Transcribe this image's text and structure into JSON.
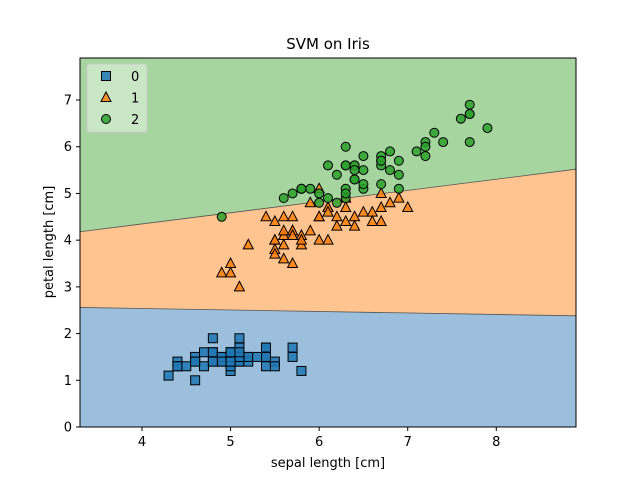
{
  "chart_data": {
    "type": "scatter",
    "title": "SVM on Iris",
    "xlabel": "sepal length [cm]",
    "ylabel": "petal length [cm]",
    "xlim": [
      3.3,
      8.9
    ],
    "ylim": [
      0,
      7.9
    ],
    "xticks": [
      4,
      5,
      6,
      7,
      8
    ],
    "yticks": [
      0,
      1,
      2,
      3,
      4,
      5,
      6,
      7
    ],
    "grid": false,
    "legend_position": "top-left",
    "regions": [
      {
        "class": "0",
        "color": "#9bbfdc",
        "edge": "#555555"
      },
      {
        "class": "1",
        "color": "#ffc48f",
        "edge": "#555555"
      },
      {
        "class": "2",
        "color": "#a6d59f",
        "edge": "#555555"
      }
    ],
    "boundaries": [
      {
        "between": [
          "0",
          "1"
        ],
        "points": [
          [
            3.3,
            2.56
          ],
          [
            8.9,
            2.38
          ]
        ]
      },
      {
        "between": [
          "1",
          "2"
        ],
        "points": [
          [
            3.3,
            4.18
          ],
          [
            8.9,
            5.52
          ]
        ]
      }
    ],
    "series": [
      {
        "name": "0",
        "marker": "square",
        "color": "#1f77b4",
        "points": [
          [
            5.1,
            1.4
          ],
          [
            4.9,
            1.4
          ],
          [
            4.7,
            1.3
          ],
          [
            4.6,
            1.5
          ],
          [
            5.0,
            1.4
          ],
          [
            5.4,
            1.7
          ],
          [
            4.6,
            1.4
          ],
          [
            5.0,
            1.5
          ],
          [
            4.4,
            1.4
          ],
          [
            4.9,
            1.5
          ],
          [
            5.4,
            1.5
          ],
          [
            4.8,
            1.6
          ],
          [
            4.8,
            1.4
          ],
          [
            4.3,
            1.1
          ],
          [
            5.8,
            1.2
          ],
          [
            5.7,
            1.5
          ],
          [
            5.4,
            1.3
          ],
          [
            5.1,
            1.4
          ],
          [
            5.7,
            1.7
          ],
          [
            5.1,
            1.5
          ],
          [
            5.4,
            1.7
          ],
          [
            5.1,
            1.5
          ],
          [
            4.6,
            1.0
          ],
          [
            5.1,
            1.7
          ],
          [
            4.8,
            1.9
          ],
          [
            5.0,
            1.6
          ],
          [
            5.0,
            1.6
          ],
          [
            5.2,
            1.5
          ],
          [
            5.2,
            1.4
          ],
          [
            4.7,
            1.6
          ],
          [
            4.8,
            1.6
          ],
          [
            5.4,
            1.5
          ],
          [
            5.2,
            1.5
          ],
          [
            5.5,
            1.4
          ],
          [
            4.9,
            1.5
          ],
          [
            5.0,
            1.2
          ],
          [
            5.5,
            1.3
          ],
          [
            4.9,
            1.4
          ],
          [
            4.4,
            1.3
          ],
          [
            5.1,
            1.5
          ],
          [
            5.0,
            1.3
          ],
          [
            4.5,
            1.3
          ],
          [
            4.4,
            1.3
          ],
          [
            5.0,
            1.6
          ],
          [
            5.1,
            1.9
          ],
          [
            4.8,
            1.4
          ],
          [
            5.1,
            1.6
          ],
          [
            4.6,
            1.4
          ],
          [
            5.3,
            1.5
          ],
          [
            5.0,
            1.4
          ]
        ]
      },
      {
        "name": "1",
        "marker": "triangle",
        "color": "#ff7f0e",
        "points": [
          [
            7.0,
            4.7
          ],
          [
            6.4,
            4.5
          ],
          [
            6.9,
            4.9
          ],
          [
            5.5,
            4.0
          ],
          [
            6.5,
            4.6
          ],
          [
            5.7,
            4.5
          ],
          [
            6.3,
            4.7
          ],
          [
            4.9,
            3.3
          ],
          [
            6.6,
            4.6
          ],
          [
            5.2,
            3.9
          ],
          [
            5.0,
            3.5
          ],
          [
            5.9,
            4.2
          ],
          [
            6.0,
            4.0
          ],
          [
            6.1,
            4.7
          ],
          [
            5.6,
            3.6
          ],
          [
            6.7,
            4.4
          ],
          [
            5.6,
            4.5
          ],
          [
            5.8,
            4.1
          ],
          [
            6.2,
            4.5
          ],
          [
            5.6,
            3.9
          ],
          [
            5.9,
            4.8
          ],
          [
            6.1,
            4.0
          ],
          [
            6.3,
            4.9
          ],
          [
            6.1,
            4.7
          ],
          [
            6.4,
            4.3
          ],
          [
            6.6,
            4.4
          ],
          [
            6.8,
            4.8
          ],
          [
            6.7,
            5.0
          ],
          [
            6.0,
            4.5
          ],
          [
            5.7,
            3.5
          ],
          [
            5.5,
            3.8
          ],
          [
            5.5,
            3.7
          ],
          [
            5.8,
            3.9
          ],
          [
            6.0,
            5.1
          ],
          [
            5.4,
            4.5
          ],
          [
            6.0,
            4.5
          ],
          [
            6.7,
            4.7
          ],
          [
            6.3,
            4.4
          ],
          [
            5.6,
            4.1
          ],
          [
            5.5,
            4.0
          ],
          [
            5.5,
            4.4
          ],
          [
            6.1,
            4.6
          ],
          [
            5.8,
            4.0
          ],
          [
            5.0,
            3.3
          ],
          [
            5.6,
            4.2
          ],
          [
            5.7,
            4.2
          ],
          [
            5.7,
            4.2
          ],
          [
            6.2,
            4.3
          ],
          [
            5.1,
            3.0
          ],
          [
            5.7,
            4.1
          ]
        ]
      },
      {
        "name": "2",
        "marker": "circle",
        "color": "#2ca02c",
        "points": [
          [
            6.3,
            6.0
          ],
          [
            5.8,
            5.1
          ],
          [
            7.1,
            5.9
          ],
          [
            6.3,
            5.6
          ],
          [
            6.5,
            5.8
          ],
          [
            7.6,
            6.6
          ],
          [
            4.9,
            4.5
          ],
          [
            7.3,
            6.3
          ],
          [
            6.7,
            5.8
          ],
          [
            7.2,
            6.1
          ],
          [
            6.5,
            5.1
          ],
          [
            6.4,
            5.3
          ],
          [
            6.8,
            5.5
          ],
          [
            5.7,
            5.0
          ],
          [
            5.8,
            5.1
          ],
          [
            6.4,
            5.3
          ],
          [
            6.5,
            5.5
          ],
          [
            7.7,
            6.7
          ],
          [
            7.7,
            6.9
          ],
          [
            6.0,
            5.0
          ],
          [
            6.9,
            5.7
          ],
          [
            5.6,
            4.9
          ],
          [
            7.7,
            6.7
          ],
          [
            6.3,
            4.9
          ],
          [
            6.7,
            5.7
          ],
          [
            7.2,
            6.0
          ],
          [
            6.2,
            4.8
          ],
          [
            6.1,
            4.9
          ],
          [
            6.4,
            5.6
          ],
          [
            7.2,
            5.8
          ],
          [
            7.4,
            6.1
          ],
          [
            7.9,
            6.4
          ],
          [
            6.4,
            5.6
          ],
          [
            6.3,
            5.1
          ],
          [
            6.1,
            5.6
          ],
          [
            7.7,
            6.1
          ],
          [
            6.3,
            5.6
          ],
          [
            6.4,
            5.5
          ],
          [
            6.0,
            4.8
          ],
          [
            6.9,
            5.4
          ],
          [
            6.7,
            5.6
          ],
          [
            6.9,
            5.1
          ],
          [
            5.8,
            5.1
          ],
          [
            6.8,
            5.9
          ],
          [
            6.7,
            5.7
          ],
          [
            6.7,
            5.2
          ],
          [
            6.3,
            5.0
          ],
          [
            6.5,
            5.2
          ],
          [
            6.2,
            5.4
          ],
          [
            5.9,
            5.1
          ]
        ]
      }
    ]
  }
}
